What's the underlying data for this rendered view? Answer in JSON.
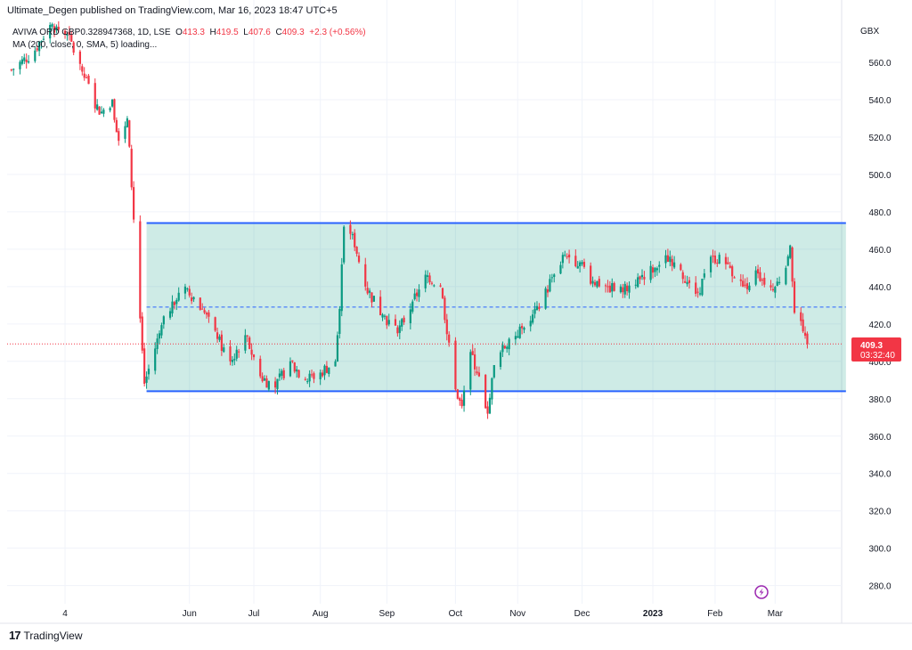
{
  "header": {
    "publish_line": "Ultimate_Degen published on TradingView.com, Mar 16, 2023 18:47 UTC+5"
  },
  "legend": {
    "symbol": "AVIVA ORD GBP0.328947368, 1D, LSE",
    "o_label": "O",
    "o_value": "413.3",
    "h_label": "H",
    "h_value": "419.5",
    "l_label": "L",
    "l_value": "407.6",
    "c_label": "C",
    "c_value": "409.3",
    "change": "+2.3 (+0.56%)",
    "ma_line": "MA (200, close, 0, SMA, 5) loading..."
  },
  "price_badge": {
    "price": "409.3",
    "countdown": "03:32:40"
  },
  "footer": {
    "brand": "TradingView",
    "logo_text": "17"
  },
  "colors": {
    "up": "#089981",
    "down": "#f23645",
    "channel_line": "#2962ff",
    "channel_fill": "rgba(8,153,129,0.2)",
    "grid": "#f0f3fa",
    "price_line": "#f23645",
    "flash_icon": "#9c27b0"
  },
  "chart_data": {
    "type": "candlestick",
    "currency": "GBX",
    "ylim": [
      270,
      585
    ],
    "y_ticks": [
      "560.0",
      "540.0",
      "520.0",
      "500.0",
      "480.0",
      "460.0",
      "440.0",
      "420.0",
      "400.0",
      "380.0",
      "360.0",
      "340.0",
      "320.0",
      "300.0",
      "280.0"
    ],
    "x_ticks": [
      {
        "label": "4",
        "date": "2022-04-04"
      },
      {
        "label": "Jun",
        "date": "2022-06-01"
      },
      {
        "label": "Jul",
        "date": "2022-07-01"
      },
      {
        "label": "Aug",
        "date": "2022-08-01"
      },
      {
        "label": "Sep",
        "date": "2022-09-01"
      },
      {
        "label": "Oct",
        "date": "2022-10-03"
      },
      {
        "label": "Nov",
        "date": "2022-11-01"
      },
      {
        "label": "Dec",
        "date": "2022-12-01"
      },
      {
        "label": "2023",
        "date": "2023-01-03"
      },
      {
        "label": "Feb",
        "date": "2023-02-01"
      },
      {
        "label": "Mar",
        "date": "2023-03-01"
      }
    ],
    "channel": {
      "start": "2022-05-12",
      "end": "2023-04-03",
      "upper": 474,
      "lower": 384,
      "mid": 429
    },
    "last_price": 409.3,
    "anchors": [
      {
        "date": "2022-03-10",
        "close": 556
      },
      {
        "date": "2022-03-20",
        "close": 565
      },
      {
        "date": "2022-03-28",
        "close": 580
      },
      {
        "date": "2022-04-05",
        "close": 575
      },
      {
        "date": "2022-04-12",
        "close": 555
      },
      {
        "date": "2022-04-20",
        "close": 532
      },
      {
        "date": "2022-04-26",
        "close": 540
      },
      {
        "date": "2022-04-29",
        "close": 518
      },
      {
        "date": "2022-05-03",
        "close": 530
      },
      {
        "date": "2022-05-11",
        "close": 388
      },
      {
        "date": "2022-05-18",
        "close": 415
      },
      {
        "date": "2022-05-24",
        "close": 432
      },
      {
        "date": "2022-05-30",
        "close": 440
      },
      {
        "date": "2022-06-07",
        "close": 428
      },
      {
        "date": "2022-06-14",
        "close": 412
      },
      {
        "date": "2022-06-20",
        "close": 400
      },
      {
        "date": "2022-06-27",
        "close": 414
      },
      {
        "date": "2022-07-04",
        "close": 392
      },
      {
        "date": "2022-07-11",
        "close": 386
      },
      {
        "date": "2022-07-18",
        "close": 400
      },
      {
        "date": "2022-07-25",
        "close": 390
      },
      {
        "date": "2022-08-01",
        "close": 394
      },
      {
        "date": "2022-08-08",
        "close": 400
      },
      {
        "date": "2022-08-10",
        "close": 428
      },
      {
        "date": "2022-08-12",
        "close": 472
      },
      {
        "date": "2022-08-16",
        "close": 468
      },
      {
        "date": "2022-08-22",
        "close": 440
      },
      {
        "date": "2022-08-30",
        "close": 425
      },
      {
        "date": "2022-09-06",
        "close": 415
      },
      {
        "date": "2022-09-13",
        "close": 432
      },
      {
        "date": "2022-09-20",
        "close": 446
      },
      {
        "date": "2022-09-26",
        "close": 440
      },
      {
        "date": "2022-09-30",
        "close": 410
      },
      {
        "date": "2022-10-04",
        "close": 380
      },
      {
        "date": "2022-10-06",
        "close": 376
      },
      {
        "date": "2022-10-10",
        "close": 405
      },
      {
        "date": "2022-10-14",
        "close": 392
      },
      {
        "date": "2022-10-18",
        "close": 372
      },
      {
        "date": "2022-10-21",
        "close": 398
      },
      {
        "date": "2022-10-28",
        "close": 412
      },
      {
        "date": "2022-11-04",
        "close": 418
      },
      {
        "date": "2022-11-11",
        "close": 428
      },
      {
        "date": "2022-11-17",
        "close": 445
      },
      {
        "date": "2022-11-23",
        "close": 457
      },
      {
        "date": "2022-11-30",
        "close": 453
      },
      {
        "date": "2022-12-06",
        "close": 443
      },
      {
        "date": "2022-12-13",
        "close": 440
      },
      {
        "date": "2022-12-20",
        "close": 437
      },
      {
        "date": "2022-12-27",
        "close": 445
      },
      {
        "date": "2023-01-04",
        "close": 450
      },
      {
        "date": "2023-01-11",
        "close": 456
      },
      {
        "date": "2023-01-18",
        "close": 442
      },
      {
        "date": "2023-01-24",
        "close": 437
      },
      {
        "date": "2023-01-31",
        "close": 456
      },
      {
        "date": "2023-02-07",
        "close": 452
      },
      {
        "date": "2023-02-14",
        "close": 440
      },
      {
        "date": "2023-02-21",
        "close": 447
      },
      {
        "date": "2023-02-28",
        "close": 438
      },
      {
        "date": "2023-03-06",
        "close": 450
      },
      {
        "date": "2023-03-08",
        "close": 462
      },
      {
        "date": "2023-03-10",
        "close": 426
      },
      {
        "date": "2023-03-14",
        "close": 416
      },
      {
        "date": "2023-03-16",
        "close": 409.3
      }
    ]
  }
}
